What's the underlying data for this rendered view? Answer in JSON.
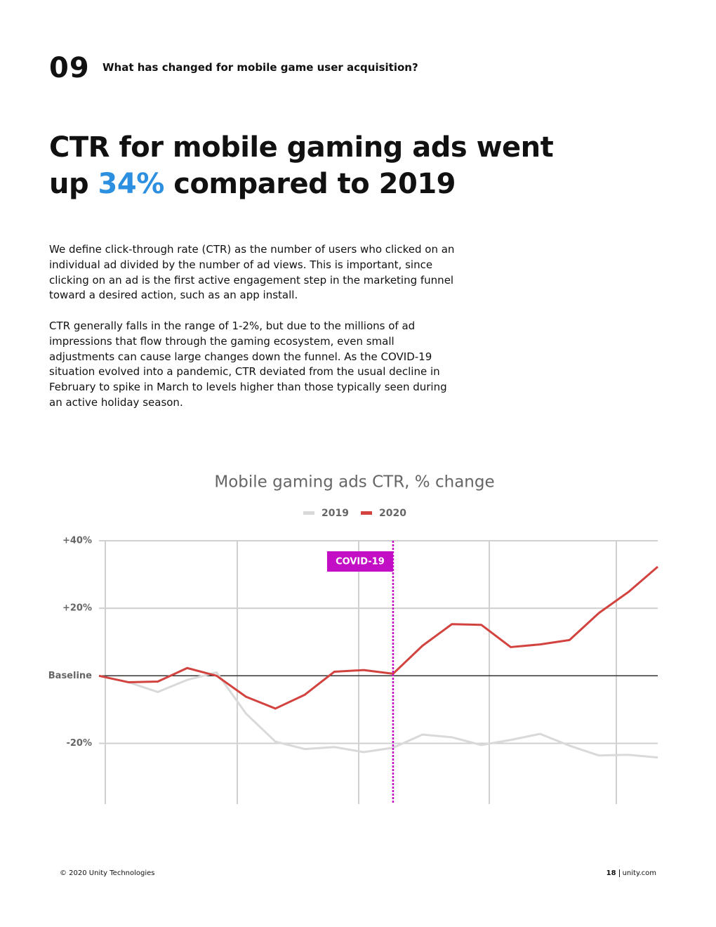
{
  "header": {
    "number": "09",
    "text": "What has changed for mobile game user acquisition?"
  },
  "headline": {
    "before": "CTR for mobile gaming ads went up",
    "highlight": "34%",
    "after": "compared to 2019"
  },
  "paragraphs": [
    "We define click-through rate (CTR) as the number of users who clicked on an individual ad divided by the number of ad views. This is important, since clicking on an ad is the first active engagement step in the marketing funnel toward a desired action, such as an app install.",
    "CTR generally falls in the range of 1-2%, but due to the millions of ad impressions that flow through the gaming ecosystem, even small adjustments can cause large changes down the funnel. As the COVID-19 situation evolved into a pandemic, CTR deviated from the usual decline in February to spike in March to levels higher than those typically seen during an active holiday season."
  ],
  "chart_data": {
    "type": "line",
    "title": "Mobile gaming ads CTR, % change",
    "categories": [
      null,
      null,
      null,
      null,
      null,
      null,
      null,
      null,
      null,
      null,
      null,
      null,
      null,
      null,
      null,
      null,
      null,
      null,
      null,
      null
    ],
    "series": [
      {
        "name": "2019",
        "color": "#d9d9d9",
        "values": [
          0,
          -1.9,
          -4.8,
          -1.2,
          1.0,
          -11.2,
          -19.5,
          -21.7,
          -21.1,
          -22.6,
          -21.3,
          -17.4,
          -18.2,
          -20.5,
          -19.0,
          -17.2,
          -20.7,
          -23.6,
          -23.4,
          -24.2
        ]
      },
      {
        "name": "2020",
        "color": "#d2433f",
        "values": [
          0,
          -1.9,
          -1.7,
          2.3,
          0,
          -6.2,
          -9.7,
          -5.6,
          1.2,
          1.7,
          0.6,
          8.9,
          15.3,
          15.1,
          8.5,
          9.3,
          10.6,
          18.6,
          24.8,
          32.3
        ]
      }
    ],
    "ylim": [
      -38,
      40
    ],
    "yticks": [
      {
        "value": 40,
        "label": "+40%"
      },
      {
        "value": 20,
        "label": "+20%"
      },
      {
        "value": 0,
        "label": "Baseline"
      },
      {
        "value": -20,
        "label": "-20%"
      }
    ],
    "grid": true,
    "annotations": [
      {
        "text": "COVID-19",
        "x": 10,
        "color": "#c20fc6"
      }
    ]
  },
  "footer": {
    "copyright": "© 2020 Unity Technologies",
    "page": "18",
    "site": "unity.com"
  }
}
